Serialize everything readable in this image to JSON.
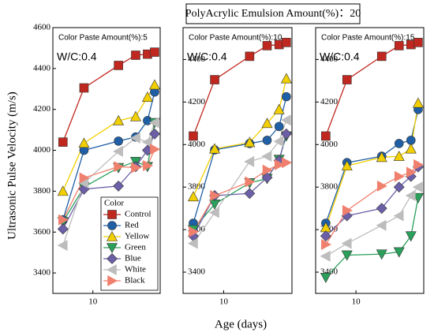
{
  "title": "PolyAcrylic Emulsion Amount(%)：20",
  "xlabel": "Age (days)",
  "ylabel": "Ultrasonic Pulse Velocity (m/s)",
  "chart_data": [
    {
      "type": "line",
      "title": "Color Paste Amount(%):5",
      "annotation": "W/C:0.4",
      "x": [
        3,
        7,
        28,
        56,
        90,
        120
      ],
      "xscale": "log",
      "xlim": [
        2,
        150
      ],
      "xticks": [
        10
      ],
      "ylim": [
        3300,
        4600
      ],
      "yticks": [
        3400,
        3600,
        3800,
        4000,
        4200,
        4400,
        4600
      ],
      "legend": true,
      "legend_title": "Color",
      "series": [
        {
          "name": "Control",
          "color": "#c0281f",
          "marker": "square",
          "values": [
            4040,
            4305,
            4415,
            4465,
            4470,
            4480
          ]
        },
        {
          "name": "Red",
          "color": "#1f5fa6",
          "marker": "circle",
          "values": [
            3660,
            4000,
            4045,
            4065,
            4145,
            4285
          ]
        },
        {
          "name": "Yellow",
          "color": "#f2cf00",
          "marker": "up",
          "values": [
            3800,
            4035,
            4145,
            4165,
            4260,
            4320
          ]
        },
        {
          "name": "Green",
          "color": "#2aa05a",
          "marker": "down",
          "values": [
            3650,
            3820,
            3915,
            3945,
            3920,
            4135
          ]
        },
        {
          "name": "Blue",
          "color": "#6c5fa8",
          "marker": "diamond",
          "values": [
            3615,
            3810,
            3825,
            3920,
            4000,
            4080
          ]
        },
        {
          "name": "White",
          "color": "#bdbdbd",
          "marker": "left",
          "values": [
            3535,
            3840,
            3995,
            4060,
            4040,
            4135
          ]
        },
        {
          "name": "Black",
          "color": "#f0806e",
          "marker": "right",
          "values": [
            3660,
            3865,
            3920,
            3915,
            3925,
            4005
          ]
        }
      ]
    },
    {
      "type": "line",
      "title": "Color Paste Amount(%):10",
      "annotation": "W/C:0.4",
      "x": [
        3,
        7,
        28,
        56,
        90,
        120
      ],
      "xscale": "log",
      "xlim": [
        2,
        150
      ],
      "xticks": [
        10
      ],
      "ylim": [
        3300,
        4550
      ],
      "yticks": [
        3400,
        3600,
        3800,
        4000,
        4200,
        4400
      ],
      "legend": false,
      "series": [
        {
          "name": "Control",
          "color": "#c0281f",
          "marker": "square",
          "values": [
            4040,
            4305,
            4415,
            4465,
            4470,
            4480
          ]
        },
        {
          "name": "Red",
          "color": "#1f5fa6",
          "marker": "circle",
          "values": [
            3630,
            3975,
            4005,
            4020,
            4085,
            4225
          ]
        },
        {
          "name": "Yellow",
          "color": "#f2cf00",
          "marker": "up",
          "values": [
            3755,
            3980,
            4010,
            4100,
            4165,
            4310
          ]
        },
        {
          "name": "Green",
          "color": "#2aa05a",
          "marker": "down",
          "values": [
            3600,
            3720,
            3820,
            3840,
            3930,
            4040
          ]
        },
        {
          "name": "Blue",
          "color": "#6c5fa8",
          "marker": "diamond",
          "values": [
            3570,
            3760,
            3770,
            3845,
            3925,
            4050
          ]
        },
        {
          "name": "White",
          "color": "#bdbdbd",
          "marker": "left",
          "values": [
            3535,
            3680,
            3920,
            3945,
            4015,
            4115
          ]
        },
        {
          "name": "Black",
          "color": "#f0806e",
          "marker": "right",
          "values": [
            3590,
            3760,
            3825,
            3880,
            3905,
            3915
          ]
        }
      ]
    },
    {
      "type": "line",
      "title": "Color Paste Amount(%):15",
      "annotation": "W/C:0.4",
      "x": [
        3,
        7,
        28,
        56,
        90,
        120
      ],
      "xscale": "log",
      "xlim": [
        2,
        150
      ],
      "xticks": [
        10
      ],
      "ylim": [
        3300,
        4550
      ],
      "yticks": [
        3400,
        3600,
        3800,
        4000,
        4200,
        4400
      ],
      "legend": false,
      "series": [
        {
          "name": "Control",
          "color": "#c0281f",
          "marker": "square",
          "values": [
            4040,
            4305,
            4415,
            4465,
            4470,
            4480
          ]
        },
        {
          "name": "Red",
          "color": "#1f5fa6",
          "marker": "circle",
          "values": [
            3630,
            3915,
            3945,
            4005,
            4020,
            4165
          ]
        },
        {
          "name": "Yellow",
          "color": "#f2cf00",
          "marker": "up",
          "values": [
            3610,
            3900,
            3940,
            3945,
            3980,
            4195
          ]
        },
        {
          "name": "Green",
          "color": "#2aa05a",
          "marker": "down",
          "values": [
            3375,
            3480,
            3485,
            3495,
            3570,
            3750
          ]
        },
        {
          "name": "Blue",
          "color": "#6c5fa8",
          "marker": "diamond",
          "values": [
            3570,
            3665,
            3700,
            3800,
            3850,
            3895
          ]
        },
        {
          "name": "White",
          "color": "#bdbdbd",
          "marker": "left",
          "values": [
            3475,
            3535,
            3620,
            3665,
            3760,
            3800
          ]
        },
        {
          "name": "Black",
          "color": "#f0806e",
          "marker": "right",
          "values": [
            3530,
            3690,
            3805,
            3850,
            3870,
            3905
          ]
        }
      ]
    }
  ]
}
